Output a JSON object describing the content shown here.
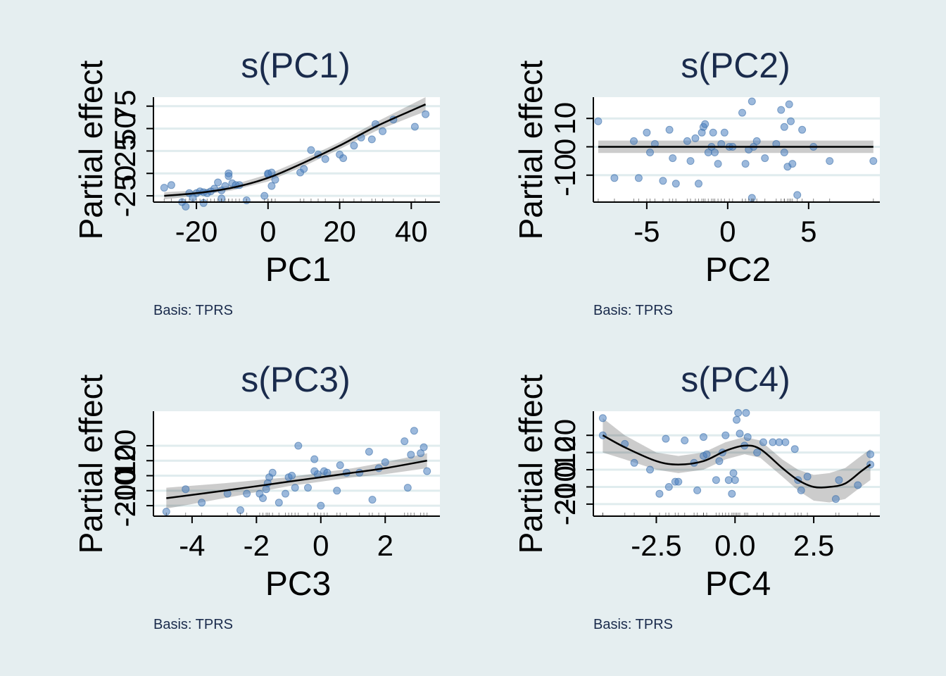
{
  "chart_data": [
    {
      "type": "scatter",
      "title": "s(PC1)",
      "xlabel": "PC1",
      "ylabel": "Partial effect",
      "caption": "Basis: TPRS",
      "xlim": [
        -32,
        48
      ],
      "ylim": [
        -32,
        85
      ],
      "xticks": [
        -20,
        0,
        20,
        40
      ],
      "xtick_labels": [
        "-20",
        "0",
        "20",
        "40"
      ],
      "yticks": [
        -25,
        0,
        25,
        50,
        75
      ],
      "ytick_labels": [
        "-25",
        "0",
        "25",
        "50",
        "75"
      ],
      "grid": true,
      "smooth": {
        "x": [
          -29,
          -20,
          -10,
          0,
          10,
          20,
          30,
          40,
          44
        ],
        "fit": [
          -25,
          -22,
          -16,
          -5,
          12,
          31,
          52,
          70,
          77
        ],
        "lower": [
          -29,
          -25,
          -19,
          -9,
          8,
          27,
          47,
          63,
          69
        ],
        "upper": [
          -21,
          -19,
          -13,
          -1,
          16,
          35,
          57,
          77,
          85
        ]
      },
      "points": {
        "x": [
          -29,
          -27,
          -24,
          -22,
          -20,
          -21,
          -19,
          -18,
          -17,
          -16,
          -15,
          -14,
          -13,
          -12,
          -11,
          -11,
          -10,
          -9,
          -8,
          -6,
          -13,
          -1,
          0,
          1,
          2,
          0,
          1,
          9,
          10,
          12,
          14,
          16,
          20,
          21,
          24,
          26,
          29,
          30,
          32,
          35,
          41,
          44,
          -23,
          -18
        ],
        "y": [
          -16,
          -13,
          -32,
          -22,
          -22,
          -27,
          -20,
          -21,
          -22,
          -20,
          -17,
          -10,
          -19,
          -14,
          0,
          -3,
          -11,
          -13,
          -13,
          -30,
          -28,
          -25,
          -1,
          -14,
          -7,
          0,
          1,
          1,
          5,
          26,
          21,
          16,
          21,
          17,
          31,
          40,
          38,
          55,
          47,
          60,
          52,
          66,
          -37,
          -33
        ]
      }
    },
    {
      "type": "scatter",
      "title": "s(PC2)",
      "xlabel": "PC2",
      "ylabel": "Partial effect",
      "caption": "Basis: TPRS",
      "xlim": [
        -8.3,
        9.4
      ],
      "ylim": [
        -19.5,
        17.5
      ],
      "xticks": [
        -5,
        0,
        5
      ],
      "xtick_labels": [
        "-5",
        "0",
        "5"
      ],
      "yticks": [
        -10,
        0,
        10
      ],
      "ytick_labels": [
        "-10",
        "0",
        "10"
      ],
      "grid": true,
      "smooth": {
        "x": [
          -8,
          9
        ],
        "fit": [
          0,
          0
        ],
        "lower": [
          -2.2,
          -2.2
        ],
        "upper": [
          2.2,
          2.2
        ]
      },
      "points": {
        "x": [
          -8,
          -7,
          -5.8,
          -5.5,
          -5,
          -4.8,
          -4.5,
          -4,
          -3.6,
          -3.4,
          -3.2,
          -2.5,
          -2.3,
          -2,
          -1.8,
          -1.6,
          -1.5,
          -1.4,
          -1.2,
          -1,
          -0.9,
          -0.8,
          -0.6,
          -0.4,
          -0.2,
          0.1,
          0.3,
          0.9,
          1.1,
          1.3,
          1.5,
          1.6,
          1.8,
          2.3,
          3,
          3.3,
          3.5,
          3.7,
          3.8,
          3.9,
          4,
          4.3,
          4.6,
          5.3,
          6.3,
          9,
          3.5,
          1.5
        ],
        "y": [
          9,
          -11,
          2,
          -11,
          5,
          -2,
          1,
          -12,
          6,
          -4,
          -13,
          2,
          -5,
          3,
          -13,
          5,
          7,
          8,
          -2,
          0,
          5,
          -2,
          -6,
          1,
          5,
          0,
          0,
          12,
          -6,
          -1,
          16,
          0,
          2,
          -4,
          1,
          13,
          7,
          -7,
          15,
          9,
          -6,
          -17,
          6,
          0,
          -5,
          -5,
          -2,
          -18
        ]
      }
    },
    {
      "type": "scatter",
      "title": "s(PC3)",
      "xlabel": "PC3",
      "ylabel": "Partial effect",
      "caption": "Basis: TPRS",
      "xlim": [
        -5.2,
        3.7
      ],
      "ylim": [
        -27,
        43
      ],
      "xticks": [
        -4,
        -2,
        0,
        2
      ],
      "xtick_labels": [
        "-4",
        "-2",
        "0",
        "2"
      ],
      "yticks": [
        -20,
        -10,
        0,
        10,
        20
      ],
      "ytick_labels": [
        "-20",
        "-10",
        "0",
        "10",
        "20"
      ],
      "grid": true,
      "smooth": {
        "x": [
          -4.8,
          -3,
          -1,
          0,
          1,
          2,
          3.3
        ],
        "fit": [
          -15,
          -10,
          -4,
          -1,
          2,
          5,
          10
        ],
        "lower": [
          -22,
          -15,
          -7,
          -4,
          -1,
          1,
          5
        ],
        "upper": [
          -8,
          -5,
          -1,
          2,
          5,
          9,
          15
        ]
      },
      "points": {
        "x": [
          -4.8,
          -4.2,
          -3.7,
          -2.9,
          -2.5,
          -2.3,
          -1.9,
          -1.8,
          -1.7,
          -1.6,
          -1.5,
          -1.3,
          -1.1,
          -1,
          -0.9,
          -0.8,
          -0.7,
          -0.4,
          -0.2,
          -0.1,
          0,
          0.1,
          0.2,
          0.5,
          0.6,
          0.8,
          1.2,
          1.5,
          1.6,
          1.8,
          2,
          2.6,
          2.7,
          2.8,
          2.9,
          3.1,
          3.2,
          3.3,
          -0.2,
          -1.65
        ],
        "y": [
          -24,
          -9,
          -18,
          -12,
          -23,
          -12,
          -12,
          -15,
          -9,
          -1,
          2,
          -18,
          -12,
          -1,
          0,
          -8,
          20,
          -8,
          11,
          1,
          -20,
          3,
          2,
          -10,
          7,
          2,
          2,
          16,
          -16,
          5,
          9,
          23,
          -8,
          14,
          30,
          15,
          19,
          3,
          3,
          -5
        ],
        "y_alt": []
      }
    },
    {
      "type": "scatter",
      "title": "s(PC4)",
      "xlabel": "PC4",
      "ylabel": "Partial effect",
      "caption": "Basis: TPRS",
      "xlim": [
        -4.5,
        4.6
      ],
      "ylim": [
        -27,
        34
      ],
      "xticks": [
        -2.5,
        0,
        2.5
      ],
      "xtick_labels": [
        "-2.5",
        "0.0",
        "2.5"
      ],
      "yticks": [
        -20,
        -10,
        0,
        10,
        20
      ],
      "ytick_labels": [
        "-20",
        "-10",
        "0",
        "10",
        "20"
      ],
      "grid": true,
      "smooth": {
        "x": [
          -4.2,
          -3.5,
          -2.5,
          -1.8,
          -1,
          -0.3,
          0.3,
          0.8,
          1.5,
          2,
          2.5,
          3,
          3.5,
          4,
          4.3
        ],
        "fit": [
          20,
          13,
          5,
          3,
          5,
          11,
          14,
          12,
          1,
          -6,
          -10,
          -10,
          -8,
          -1,
          3
        ],
        "lower": [
          10,
          6,
          0,
          -2,
          0,
          6,
          9,
          7,
          -4,
          -12,
          -18,
          -19,
          -17,
          -10,
          -6
        ],
        "upper": [
          30,
          20,
          10,
          8,
          10,
          16,
          19,
          17,
          6,
          0,
          -3,
          -2,
          1,
          8,
          12
        ]
      },
      "points": {
        "x": [
          -4.2,
          -4.2,
          -3.5,
          -3.2,
          -2.7,
          -2.4,
          -2.2,
          -2.1,
          -1.9,
          -1.8,
          -1.6,
          -1.3,
          -1.2,
          -1,
          -1,
          -0.9,
          -0.6,
          -0.5,
          -0.4,
          -0.3,
          -0.2,
          -0.1,
          -0.05,
          0,
          0.05,
          0.1,
          0.15,
          0.3,
          0.35,
          0.4,
          0.7,
          0.9,
          1.2,
          1.4,
          1.6,
          1.9,
          2,
          2.1,
          2.3,
          3.2,
          3.3,
          3.9,
          4.3,
          4.3
        ],
        "y": [
          30,
          20,
          15,
          4,
          0,
          -14,
          18,
          -10,
          -7,
          -7,
          17,
          4,
          -12,
          19,
          8,
          9,
          -6,
          5,
          10,
          20,
          -6,
          -14,
          -2,
          -6,
          29,
          33,
          21,
          14,
          33,
          19,
          10,
          16,
          16,
          16,
          16,
          12,
          -6,
          -12,
          -4,
          -17,
          -6,
          -9,
          3,
          9
        ]
      }
    }
  ]
}
